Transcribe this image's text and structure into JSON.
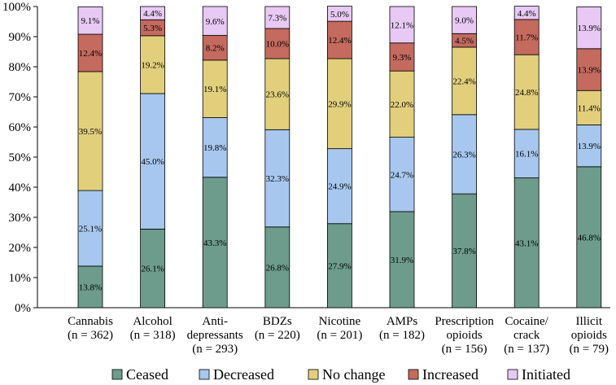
{
  "chart_data": {
    "type": "bar",
    "stacked": true,
    "categories": [
      {
        "name": "Cannabis",
        "n": "(n = 362)"
      },
      {
        "name": "Alcohol",
        "n": "(n = 318)"
      },
      {
        "name": "Anti-",
        "name2": "depressants",
        "n": "(n = 293)"
      },
      {
        "name": "BDZs",
        "n": "(n = 220)"
      },
      {
        "name": "Nicotine",
        "n": "(n = 201)"
      },
      {
        "name": "AMPs",
        "n": "(n = 182)"
      },
      {
        "name": "Prescription",
        "name2": "opioids",
        "n": "(n = 156)"
      },
      {
        "name": "Cocaine/",
        "name2": "crack",
        "n": "(n = 137)"
      },
      {
        "name": "Illicit",
        "name2": "opioids",
        "n": "(n = 79)"
      }
    ],
    "series": [
      {
        "name": "Ceased",
        "color": "#6d9c8c",
        "values": [
          13.8,
          26.1,
          43.3,
          26.8,
          27.9,
          31.9,
          37.8,
          43.1,
          46.8
        ],
        "labels": [
          "13.8%",
          "26.1%",
          "43.3%",
          "26.8%",
          "27.9%",
          "31.9%",
          "37.8%",
          "43.1%",
          "46.8%"
        ]
      },
      {
        "name": "Decreased",
        "color": "#a7c7ee",
        "values": [
          25.1,
          45.0,
          19.8,
          32.3,
          24.9,
          24.7,
          26.3,
          16.1,
          13.9
        ],
        "labels": [
          "25.1%",
          "45.0%",
          "19.8%",
          "32.3%",
          "24.9%",
          "24.7%",
          "26.3%",
          "16.1%",
          "13.9%"
        ]
      },
      {
        "name": "No change",
        "color": "#e2cf7c",
        "values": [
          39.5,
          19.2,
          19.1,
          23.6,
          29.9,
          22.0,
          22.4,
          24.8,
          11.4
        ],
        "labels": [
          "39.5%",
          "19.2%",
          "19.1%",
          "23.6%",
          "29.9%",
          "22.0%",
          "22.4%",
          "24.8%",
          "11.4%"
        ]
      },
      {
        "name": "Increased",
        "color": "#c46a5e",
        "values": [
          12.4,
          5.3,
          8.2,
          10.0,
          12.4,
          9.3,
          4.5,
          11.7,
          13.9
        ],
        "labels": [
          "12.4%",
          "5.3%",
          "8.2%",
          "10.0%",
          "12.4%",
          "9.3%",
          "4.5%",
          "11.7%",
          "13.9%"
        ]
      },
      {
        "name": "Initiated",
        "color": "#e7c9f3",
        "values": [
          9.1,
          4.4,
          9.6,
          7.3,
          5.0,
          12.1,
          9.0,
          4.4,
          13.9
        ],
        "labels": [
          "9.1%",
          "4.4%",
          "9.6%",
          "7.3%",
          "5.0%",
          "12.1%",
          "9.0%",
          "4.4%",
          "13.9%"
        ]
      }
    ],
    "ylim": [
      0,
      100
    ],
    "yticks": [
      "0%",
      "10%",
      "20%",
      "30%",
      "40%",
      "50%",
      "60%",
      "70%",
      "80%",
      "90%",
      "100%"
    ],
    "legend_position": "bottom"
  }
}
